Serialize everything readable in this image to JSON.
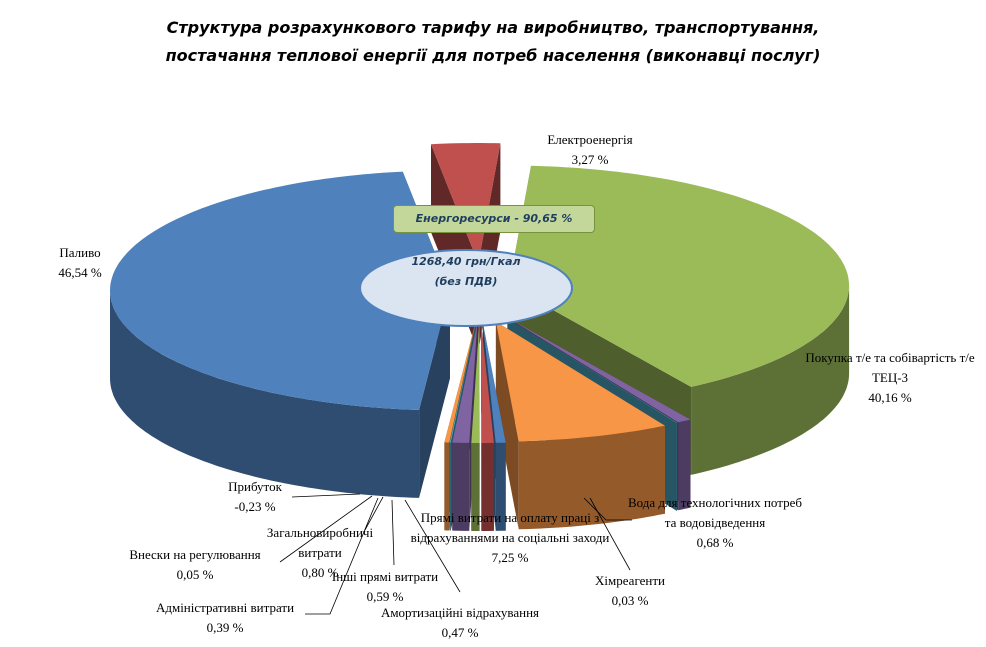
{
  "chart_data": {
    "type": "pie",
    "title": [
      "Структура  розрахункового  тарифу на виробництво, транспортування,",
      "постачання теплової енергії для потреб населення (виконавці послуг)"
    ],
    "annotation": "Енергоресурси - 90,65 %",
    "center_label": [
      "1268,40 грн/Гкал",
      "(без ПДВ)"
    ],
    "categories": [
      "Електроенергія",
      "Покупка т/е та собівартість т/е ТЕЦ-3",
      "Вода для технологічних потреб  та водовідведення",
      "Хімреагенти",
      "Прямі витрати на оплату праці з відрахуваннями на соціальні заходи",
      "Амортизаційні відрахування",
      "Інші прямі витрати",
      "Адміністративні витрати",
      "Загальновиробничі витрати",
      "Внески на регулювання",
      "Прибуток",
      "Паливо"
    ],
    "values": [
      3.27,
      40.16,
      0.68,
      0.03,
      7.25,
      0.47,
      0.59,
      0.39,
      0.8,
      0.05,
      -0.23,
      46.54
    ],
    "value_labels": [
      "3,27 %",
      "40,16 %",
      "0,68 %",
      "0,03 %",
      "7,25 %",
      "0,47 %",
      "0,59 %",
      "0,39 %",
      "0,80 %",
      "0,05 %",
      "-0,23 %",
      "46,54 %"
    ],
    "colors": [
      "#c0504d",
      "#9bbb59",
      "#8064a2",
      "#4bacc6",
      "#f79646",
      "#4f81bd",
      "#c0504d",
      "#9bbb59",
      "#8064a2",
      "#4bacc6",
      "#f79646",
      "#4f81bd"
    ]
  }
}
